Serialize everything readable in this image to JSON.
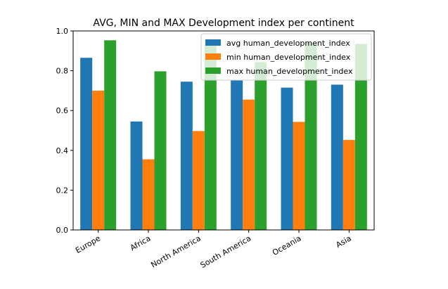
{
  "chart_data": {
    "type": "bar",
    "title": "AVG, MIN and MAX Development index per continent",
    "xlabel": "",
    "ylabel": "",
    "categories": [
      "Europe",
      "Africa",
      "North America",
      "South America",
      "Oceania",
      "Asia"
    ],
    "series": [
      {
        "name": "avg human_development_index",
        "color": "#1f77b4",
        "values": [
          0.865,
          0.545,
          0.745,
          0.752,
          0.715,
          0.73
        ]
      },
      {
        "name": "min human_development_index",
        "color": "#ff7f0e",
        "values": [
          0.7,
          0.355,
          0.497,
          0.655,
          0.543,
          0.452
        ]
      },
      {
        "name": "max human_development_index",
        "color": "#2ca02c",
        "values": [
          0.953,
          0.797,
          0.93,
          0.843,
          0.94,
          0.935
        ]
      }
    ],
    "ylim": [
      0,
      1.0
    ],
    "yticks": [
      "0.0",
      "0.2",
      "0.4",
      "0.6",
      "0.8",
      "1.0"
    ],
    "grid": false,
    "legend_position": "top-right"
  }
}
